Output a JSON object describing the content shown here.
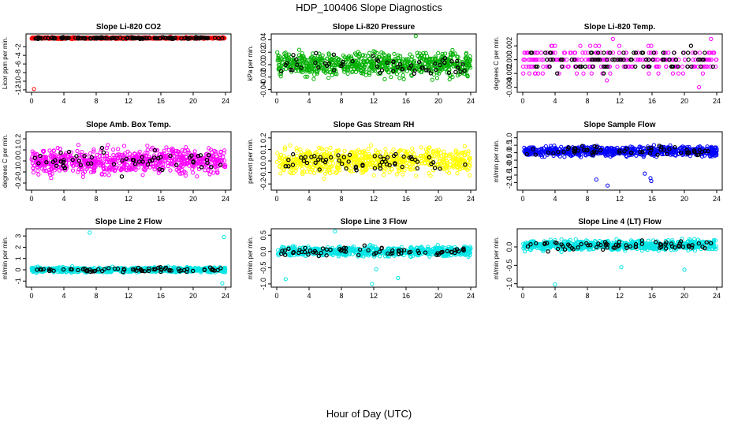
{
  "figure": {
    "title": "HDP_100406  Slope Diagnostics",
    "xlabel": "Hour of Day (UTC)"
  },
  "chart_data": [
    {
      "type": "scatter",
      "title": "Slope Li-820 CO2",
      "ylabel": "Licor ppm per min.",
      "xlim": [
        0,
        24
      ],
      "xticks": [
        0,
        4,
        8,
        12,
        16,
        20,
        24
      ],
      "ylim": [
        -12.2,
        0.6
      ],
      "yticks": [
        -12,
        -10,
        -8,
        -6,
        -4,
        -2
      ],
      "ytick_labels": [
        "-12",
        "-10",
        "-8",
        "-6",
        "-4",
        "-2"
      ],
      "color": "#ff0000",
      "n_points": 700,
      "center": 0.0,
      "spread": 0.12,
      "outliers": [
        {
          "x": 0.3,
          "y": -11.8
        },
        {
          "x": 17.2,
          "y": 0.3
        }
      ],
      "overlay_color": "#000000",
      "overlay_points": 120
    },
    {
      "type": "scatter",
      "title": "Slope Li-820 Pressure",
      "ylabel": "kPa per min.",
      "xlim": [
        0,
        24
      ],
      "xticks": [
        0,
        4,
        8,
        12,
        16,
        20,
        24
      ],
      "ylim": [
        -0.042,
        0.047
      ],
      "yticks": [
        -0.04,
        -0.02,
        0.0,
        0.02,
        0.04
      ],
      "ytick_labels": [
        "-0.04",
        "-0.02",
        "0.00",
        "0.02",
        "0.04"
      ],
      "color": "#00b000",
      "n_points": 700,
      "center": 0.0,
      "spread": 0.013,
      "outliers": [
        {
          "x": 17.2,
          "y": 0.046
        }
      ],
      "overlay_color": "#000000",
      "overlay_points": 60
    },
    {
      "type": "scatter",
      "title": "Slope Li-820 Temp.",
      "ylabel": "degrees C per min.",
      "xlim": [
        0,
        24
      ],
      "xticks": [
        0,
        4,
        8,
        12,
        16,
        20,
        24
      ],
      "ylim": [
        -0.0045,
        0.0035
      ],
      "yticks": [
        -0.004,
        -0.002,
        0.0,
        0.002
      ],
      "ytick_labels": [
        "-0.004",
        "-0.002",
        "0.000",
        "0.002"
      ],
      "color": "#ff00ff",
      "n_points": 260,
      "center": 0.0,
      "spread": 0.0013,
      "quantize": 0.001,
      "outliers": [
        {
          "x": 10.4,
          "y": -0.003
        },
        {
          "x": 21.8,
          "y": -0.004
        },
        {
          "x": 23.3,
          "y": 0.003
        }
      ],
      "overlay_color": "#000000",
      "overlay_points": 90
    },
    {
      "type": "scatter",
      "title": "Slope Amb. Box Temp.",
      "ylabel": "degrees C per min.",
      "xlim": [
        0,
        24
      ],
      "xticks": [
        0,
        4,
        8,
        12,
        16,
        20,
        24
      ],
      "ylim": [
        -0.25,
        0.25
      ],
      "yticks": [
        -0.2,
        -0.1,
        0.0,
        0.1,
        0.2
      ],
      "ytick_labels": [
        "-0.2",
        "-0.1",
        "0.0",
        "0.1",
        "0.2"
      ],
      "color": "#ff00ff",
      "n_points": 700,
      "center": 0.0,
      "spread": 0.075,
      "outliers": [],
      "overlay_color": "#000000",
      "overlay_points": 60
    },
    {
      "type": "scatter",
      "title": "Slope Gas Stream RH",
      "ylabel": "percent per min.",
      "xlim": [
        0,
        24
      ],
      "xticks": [
        0,
        4,
        8,
        12,
        16,
        20,
        24
      ],
      "ylim": [
        -0.24,
        0.24
      ],
      "yticks": [
        -0.2,
        -0.1,
        0.0,
        0.1,
        0.2
      ],
      "ytick_labels": [
        "-0.2",
        "-0.1",
        "0.0",
        "0.1",
        "0.2"
      ],
      "color": "#ffff00",
      "n_points": 700,
      "center": 0.0,
      "spread": 0.075,
      "outliers": [],
      "overlay_color": "#000000",
      "overlay_points": 60
    },
    {
      "type": "scatter",
      "title": "Slope Sample Flow",
      "ylabel": "ml/min per min.",
      "xlim": [
        0,
        24
      ],
      "xticks": [
        0,
        4,
        8,
        12,
        16,
        20,
        24
      ],
      "ylim": [
        -2.4,
        1.3
      ],
      "yticks": [
        -2.0,
        -1.5,
        -1.0,
        -0.5,
        0.0,
        0.5,
        1.0
      ],
      "ytick_labels": [
        "-2.0",
        "-1.5",
        "-1.0",
        "-0.5",
        "0.0",
        "0.5",
        "1.0"
      ],
      "color": "#0000ff",
      "n_points": 700,
      "center": 0.1,
      "spread": 0.22,
      "outliers": [
        {
          "x": 9.1,
          "y": -1.8
        },
        {
          "x": 10.5,
          "y": -2.2
        },
        {
          "x": 15.8,
          "y": -1.7
        },
        {
          "x": 15.1,
          "y": -1.4
        },
        {
          "x": 15.9,
          "y": -1.9
        }
      ],
      "overlay_color": "#000000",
      "overlay_points": 60
    },
    {
      "type": "scatter",
      "title": "Slope Line 2 Flow",
      "ylabel": "ml/min per min.",
      "xlim": [
        0,
        24
      ],
      "xticks": [
        0,
        4,
        8,
        12,
        16,
        20,
        24
      ],
      "ylim": [
        -1.4,
        3.5
      ],
      "yticks": [
        -1,
        0,
        1,
        2,
        3
      ],
      "ytick_labels": [
        "-1",
        "0",
        "1",
        "2",
        "3"
      ],
      "color": "#00e5e5",
      "n_points": 650,
      "center": 0.0,
      "spread": 0.15,
      "outliers": [
        {
          "x": 7.2,
          "y": 3.3
        },
        {
          "x": 23.8,
          "y": 2.9
        },
        {
          "x": 23.6,
          "y": -1.2
        }
      ],
      "overlay_color": "#000000",
      "overlay_points": 70
    },
    {
      "type": "scatter",
      "title": "Slope Line 3 Flow",
      "ylabel": "ml/min per min.",
      "xlim": [
        0,
        24
      ],
      "xticks": [
        0,
        4,
        8,
        12,
        16,
        20,
        24
      ],
      "ylim": [
        -1.05,
        0.65
      ],
      "yticks": [
        -1.0,
        -0.5,
        0.0,
        0.5
      ],
      "ytick_labels": [
        "-1.0",
        "-0.5",
        "0.0",
        "0.5"
      ],
      "color": "#00e5e5",
      "n_points": 650,
      "center": 0.0,
      "spread": 0.1,
      "outliers": [
        {
          "x": 7.2,
          "y": 0.62
        },
        {
          "x": 1.1,
          "y": -0.85
        },
        {
          "x": 11.8,
          "y": -1.0
        },
        {
          "x": 12.3,
          "y": -0.55
        },
        {
          "x": 15.0,
          "y": -0.82
        }
      ],
      "overlay_color": "#000000",
      "overlay_points": 70
    },
    {
      "type": "scatter",
      "title": "Slope Line 4 (LT) Flow",
      "ylabel": "ml/min per min.",
      "xlim": [
        0,
        24
      ],
      "xticks": [
        0,
        4,
        8,
        12,
        16,
        20,
        24
      ],
      "ylim": [
        -1.05,
        0.45
      ],
      "yticks": [
        -1.0,
        -0.5,
        0.0
      ],
      "ytick_labels": [
        "-1.0",
        "-0.5",
        "0.0"
      ],
      "color": "#00e5e5",
      "n_points": 650,
      "center": 0.05,
      "spread": 0.09,
      "outliers": [
        {
          "x": 4.0,
          "y": -1.02
        },
        {
          "x": 12.2,
          "y": -0.55
        },
        {
          "x": 20.0,
          "y": -0.62
        }
      ],
      "overlay_color": "#000000",
      "overlay_points": 70
    }
  ]
}
